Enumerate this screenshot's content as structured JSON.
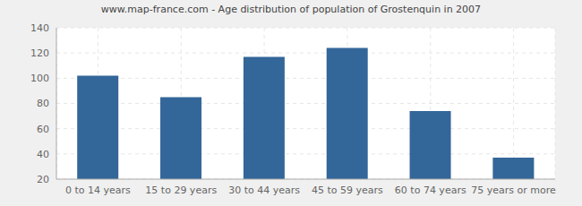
{
  "chart_data": {
    "type": "bar",
    "title": "www.map-france.com - Age distribution of population of Grostenquin in 2007",
    "categories": [
      "0 to 14 years",
      "15 to 29 years",
      "30 to 44 years",
      "45 to 59 years",
      "60 to 74 years",
      "75 years or more"
    ],
    "values": [
      102,
      85,
      117,
      124,
      74,
      37
    ],
    "color": "#336699",
    "ylim": [
      20,
      140
    ],
    "yticks": [
      20,
      40,
      60,
      80,
      100,
      120,
      140
    ],
    "grid": true
  }
}
